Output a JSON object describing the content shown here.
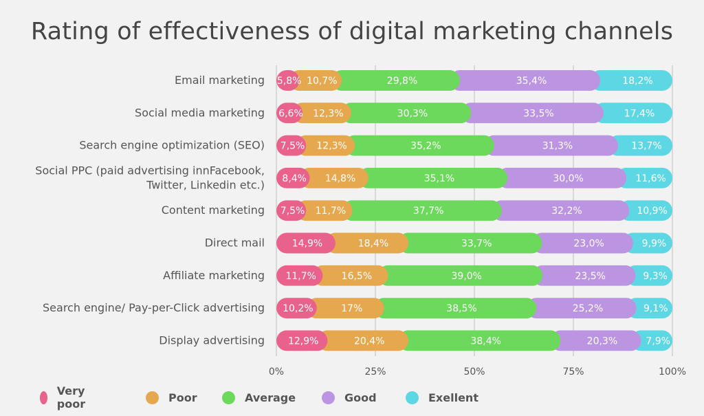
{
  "chart_data": {
    "type": "bar",
    "orientation": "horizontal",
    "stacked": true,
    "title": "Rating of effectiveness of digital marketing channels",
    "categories": [
      [
        "Email marketing"
      ],
      [
        "Social media marketing"
      ],
      [
        "Search engine optimization (SEO)"
      ],
      [
        "Social PPC (paid advertising innFacebook,",
        "Twitter, Linkedin etc.)"
      ],
      [
        "Content marketing"
      ],
      [
        "Direct mail"
      ],
      [
        "Affiliate marketing"
      ],
      [
        "Search engine/ Pay-per-Click advertising"
      ],
      [
        "Display advertising"
      ]
    ],
    "series": [
      {
        "name": "Very poor",
        "color": "#e8628c",
        "values": [
          5.8,
          6.6,
          7.5,
          8.4,
          7.5,
          14.9,
          11.7,
          10.2,
          12.9
        ],
        "labels": [
          "5,8%",
          "6,6%",
          "7,5%",
          "8,4%",
          "7,5%",
          "14,9%",
          "11,7%",
          "10,2%",
          "12,9%"
        ]
      },
      {
        "name": "Poor",
        "color": "#e6a84f",
        "values": [
          10.7,
          12.3,
          12.3,
          14.8,
          11.7,
          18.4,
          16.5,
          17,
          20.4
        ],
        "labels": [
          "10,7%",
          "12,3%",
          "12,3%",
          "14,8%",
          "11,7%",
          "18,4%",
          "16,5%",
          "17%",
          "20,4%"
        ]
      },
      {
        "name": "Average",
        "color": "#6cd85c",
        "values": [
          29.8,
          30.3,
          35.2,
          35.1,
          37.7,
          33.7,
          39.0,
          38.5,
          38.4
        ],
        "labels": [
          "29,8%",
          "30,3%",
          "35,2%",
          "35,1%",
          "37,7%",
          "33,7%",
          "39,0%",
          "38,5%",
          "38,4%"
        ]
      },
      {
        "name": "Good",
        "color": "#bb94e2",
        "values": [
          35.4,
          33.5,
          31.3,
          30.0,
          32.2,
          23.0,
          23.5,
          25.2,
          20.3
        ],
        "labels": [
          "35,4%",
          "33,5%",
          "31,3%",
          "30,0%",
          "32,2%",
          "23,0%",
          "23,5%",
          "25,2%",
          "20,3%"
        ]
      },
      {
        "name": "Exellent",
        "color": "#5ed7e5",
        "values": [
          18.2,
          17.4,
          13.7,
          11.6,
          10.9,
          9.9,
          9.3,
          9.1,
          7.9
        ],
        "labels": [
          "18,2%",
          "17,4%",
          "13,7%",
          "11,6%",
          "10,9%",
          "9,9%",
          "9,3%",
          "9,1%",
          "7,9%"
        ]
      }
    ],
    "xlim": [
      0,
      100
    ],
    "x_ticks": [
      0,
      25,
      50,
      75,
      100
    ],
    "x_tick_labels": [
      "0%",
      "25%",
      "50%",
      "75%",
      "100%"
    ],
    "grid": true,
    "legend": "bottom"
  }
}
